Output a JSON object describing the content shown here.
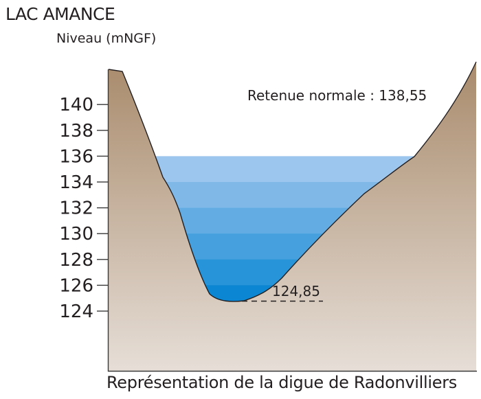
{
  "title": "LAC AMANCE",
  "ylabel": "Niveau (mNGF)",
  "caption": "Représentation de la digue de Radonvilliers",
  "annotations": {
    "retenue_normale": "Retenue normale : 138,55",
    "fond": "124,85"
  },
  "colors": {
    "terrain_top": "#a98b6c",
    "terrain_bottom": "#e6ded7",
    "water_top": "#9dc6ee",
    "water_bottom": "#0a86d2",
    "axis": "#3a3a3a"
  },
  "chart_data": {
    "type": "cross-section",
    "y_ticks": [
      124,
      126,
      128,
      130,
      132,
      134,
      136,
      138,
      140
    ],
    "tick_labels": [
      "124",
      "126",
      "128",
      "130",
      "132",
      "134",
      "136",
      "138",
      "140"
    ],
    "water_surface_level": 136,
    "water_bottom_level": 124.85,
    "water_layer_boundaries": [
      136,
      134,
      132,
      130,
      128,
      126
    ],
    "retenue_normale": 138.55
  }
}
